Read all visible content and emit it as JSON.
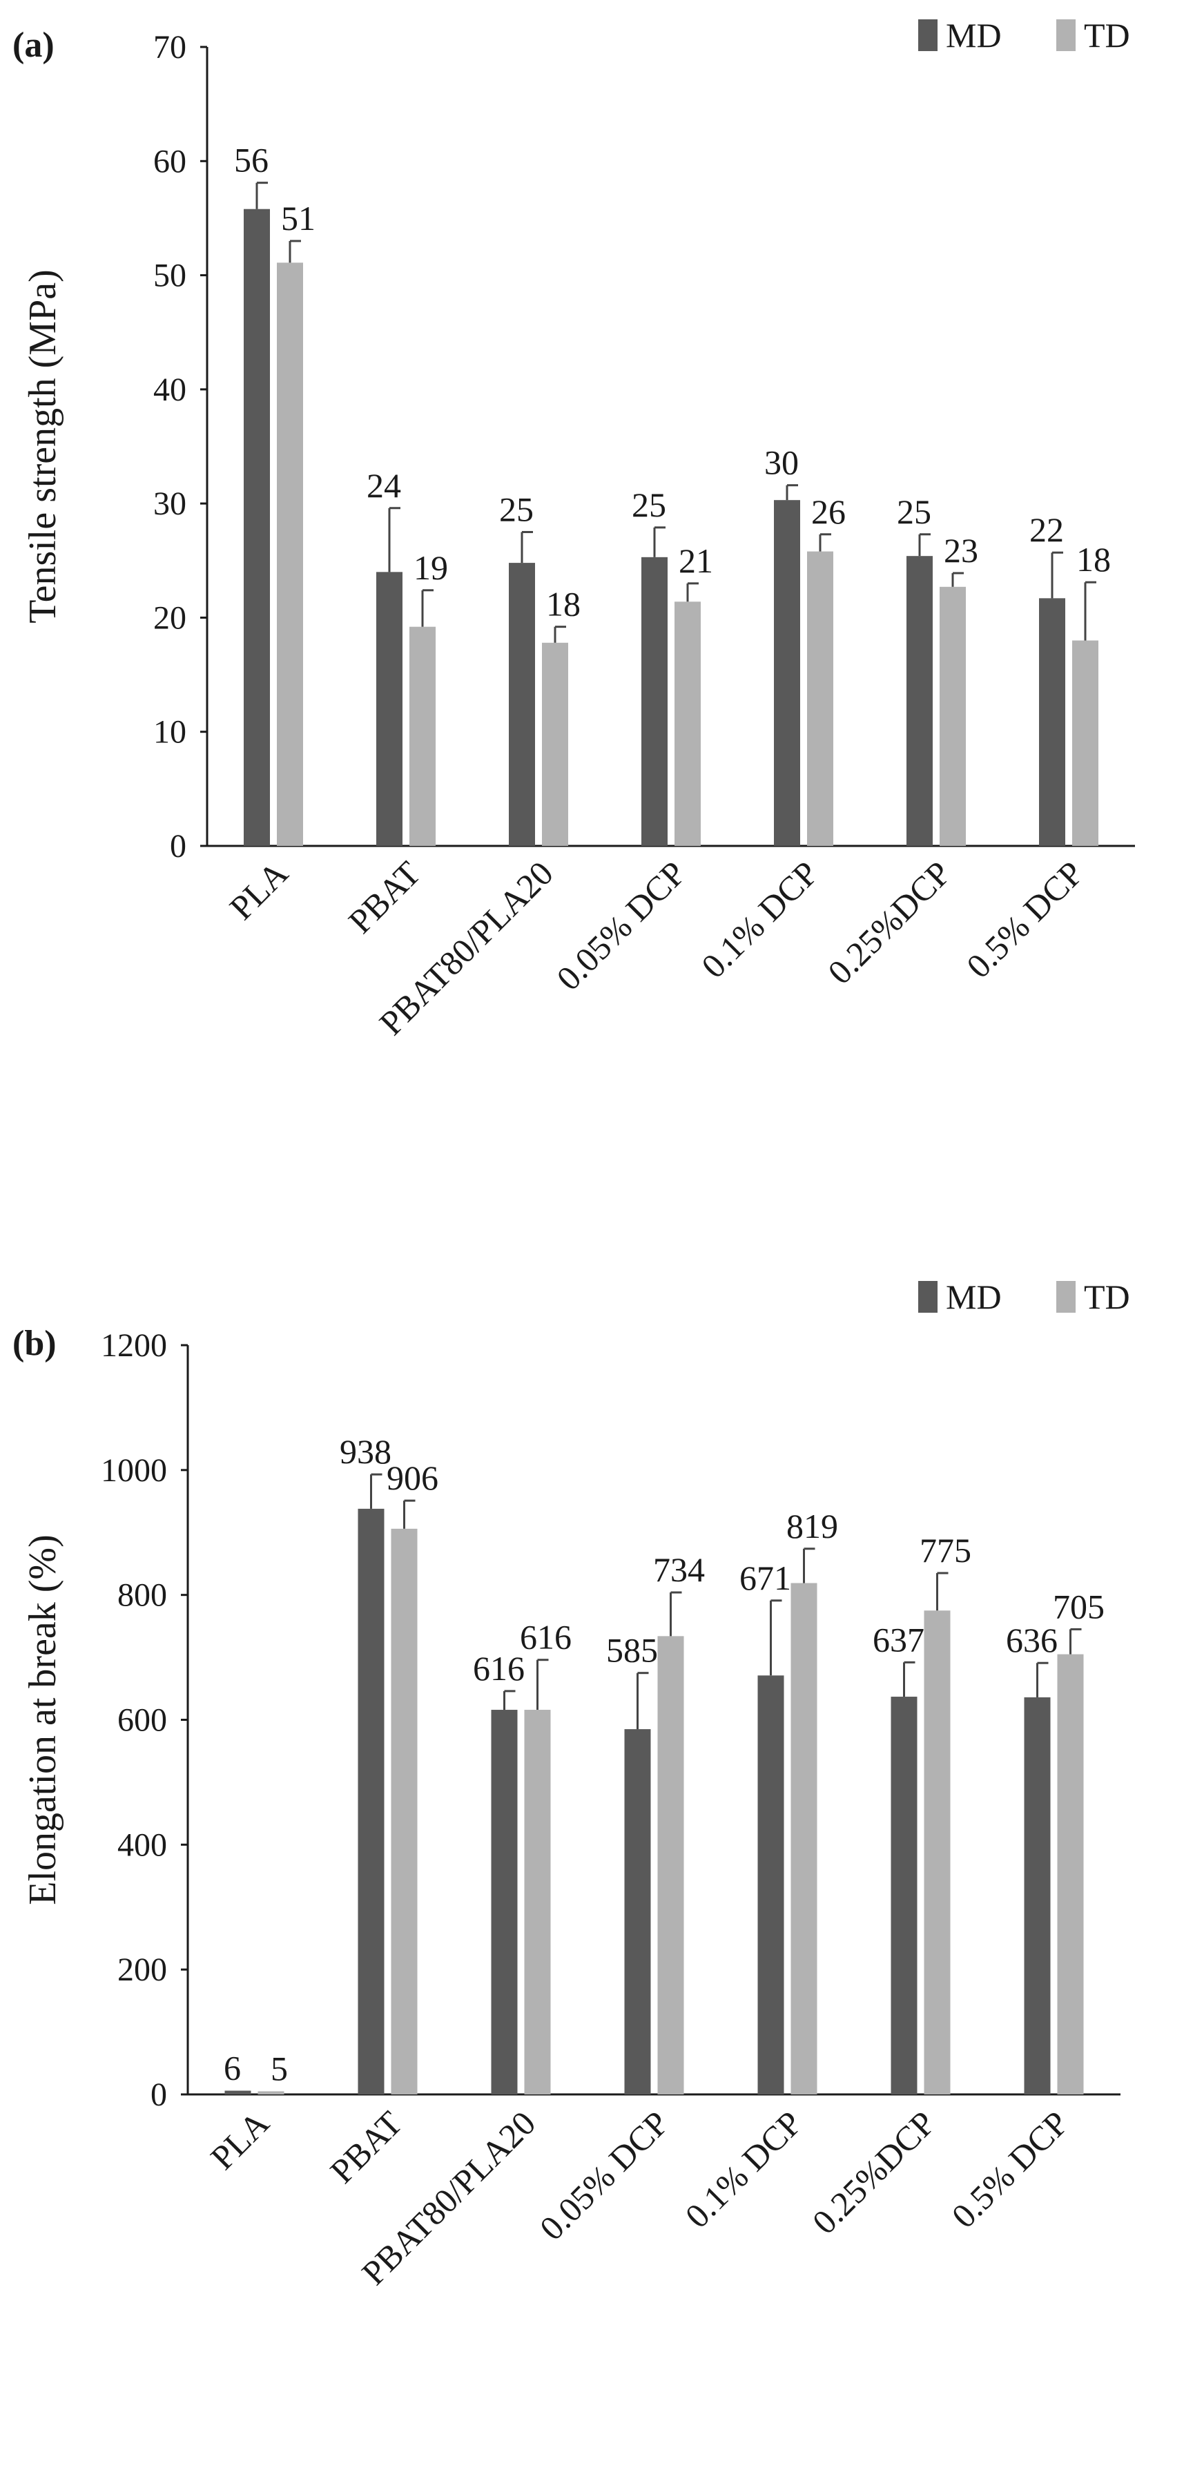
{
  "colors": {
    "md": "#595959",
    "td": "#b2b2b2",
    "axis": "#1a1a1a"
  },
  "chart_data": [
    {
      "type": "bar",
      "panel_label": "(a)",
      "title": "",
      "xlabel": "",
      "ylabel": "Tensile strength (MPa)",
      "ylim": [
        0,
        70
      ],
      "yticks": [
        0,
        10,
        20,
        30,
        40,
        50,
        60,
        70
      ],
      "grid": false,
      "legend": "top-right",
      "categories": [
        "PLA",
        "PBAT",
        "PBAT80/PLA20",
        "0.05% DCP",
        "0.1% DCP",
        "0.25%DCP",
        "0.5% DCP"
      ],
      "series": [
        {
          "name": "MD",
          "values": [
            55.8,
            24.0,
            24.8,
            25.3,
            30.3,
            25.4,
            21.7
          ],
          "errors": [
            2.3,
            5.6,
            2.7,
            2.6,
            1.3,
            1.9,
            4.0
          ],
          "labels": [
            "56",
            "24",
            "25",
            "25",
            "30",
            "25",
            "22"
          ]
        },
        {
          "name": "TD",
          "values": [
            51.1,
            19.2,
            17.8,
            21.4,
            25.8,
            22.7,
            18.0
          ],
          "errors": [
            1.9,
            3.2,
            1.4,
            1.6,
            1.5,
            1.2,
            5.1
          ],
          "labels": [
            "51",
            "19",
            "18",
            "21",
            "26",
            "23",
            "18"
          ]
        }
      ]
    },
    {
      "type": "bar",
      "panel_label": "(b)",
      "title": "",
      "xlabel": "",
      "ylabel": "Elongation at break (%)",
      "ylim": [
        0,
        1200
      ],
      "yticks": [
        0,
        200,
        400,
        600,
        800,
        1000,
        1200
      ],
      "grid": false,
      "legend": "top-right",
      "categories": [
        "PLA",
        "PBAT",
        "PBAT80/PLA20",
        "0.05% DCP",
        "0.1% DCP",
        "0.25%DCP",
        "0.5% DCP"
      ],
      "series": [
        {
          "name": "MD",
          "values": [
            6,
            938,
            616,
            585,
            671,
            637,
            636
          ],
          "errors": [
            0,
            55,
            30,
            90,
            120,
            55,
            55
          ],
          "labels": [
            "6",
            "938",
            "616",
            "585",
            "671",
            "637",
            "636"
          ]
        },
        {
          "name": "TD",
          "values": [
            5,
            906,
            616,
            734,
            819,
            775,
            705
          ],
          "errors": [
            0,
            45,
            80,
            70,
            55,
            60,
            40
          ],
          "labels": [
            "5",
            "906",
            "616",
            "734",
            "819",
            "775",
            "705"
          ]
        }
      ]
    }
  ]
}
